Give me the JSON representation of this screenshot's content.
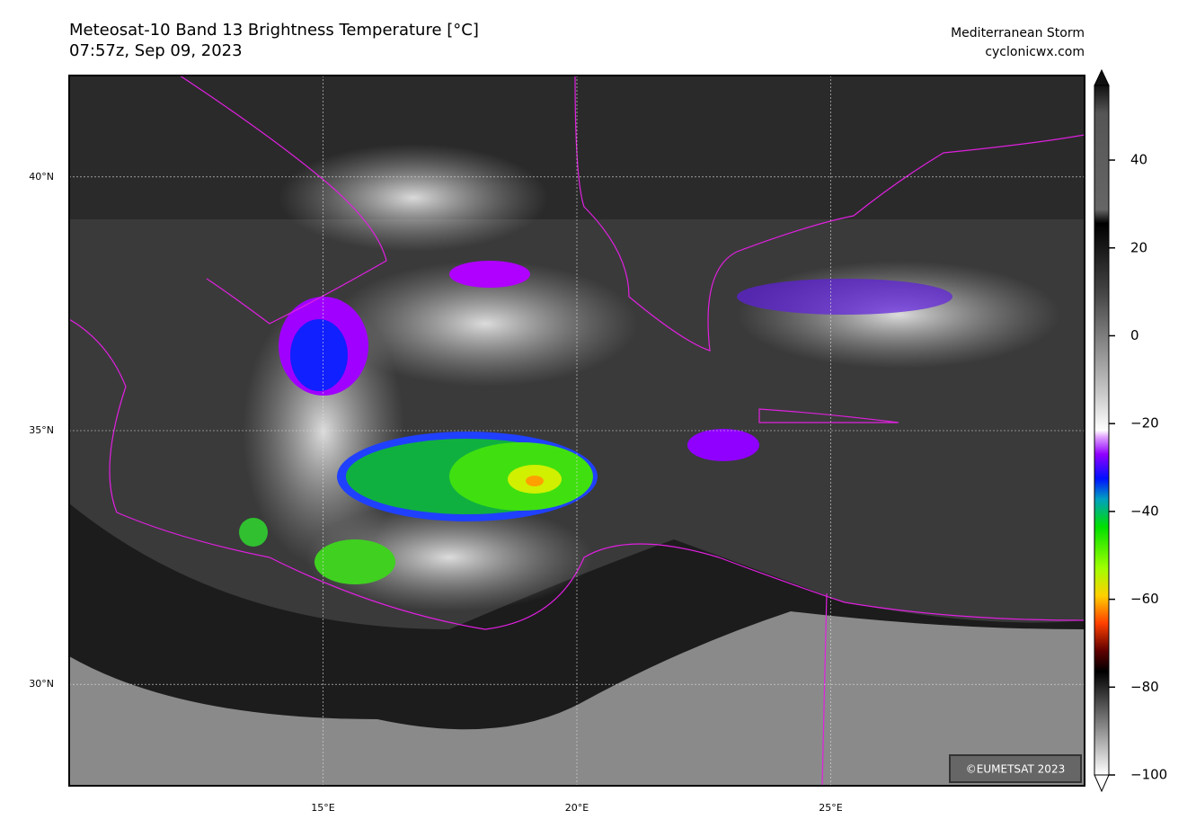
{
  "header": {
    "title": "Meteosat-10 Band 13 Brightness Temperature [°C]",
    "subtitle": "07:57z, Sep 09, 2023",
    "event": "Mediterranean Storm",
    "source": "cyclonicwx.com"
  },
  "map": {
    "lonlim": [
      10,
      30
    ],
    "latlim": [
      28,
      42
    ],
    "lonticks": [
      {
        "value": 15,
        "label": "15°E"
      },
      {
        "value": 20,
        "label": "20°E"
      },
      {
        "value": 25,
        "label": "25°E"
      }
    ],
    "latticks": [
      {
        "value": 30,
        "label": "30°N"
      },
      {
        "value": 35,
        "label": "35°N"
      },
      {
        "value": 40,
        "label": "40°N"
      }
    ],
    "grid": true,
    "credit": "©EUMETSAT 2023"
  },
  "colorbar": {
    "range": [
      -100,
      57
    ],
    "ticks": [
      {
        "value": 40,
        "label": "40"
      },
      {
        "value": 20,
        "label": "20"
      },
      {
        "value": 0,
        "label": "0"
      },
      {
        "value": -20,
        "label": "−20"
      },
      {
        "value": -40,
        "label": "−40"
      },
      {
        "value": -60,
        "label": "−60"
      },
      {
        "value": -80,
        "label": "−80"
      },
      {
        "value": -100,
        "label": "−100"
      }
    ]
  }
}
